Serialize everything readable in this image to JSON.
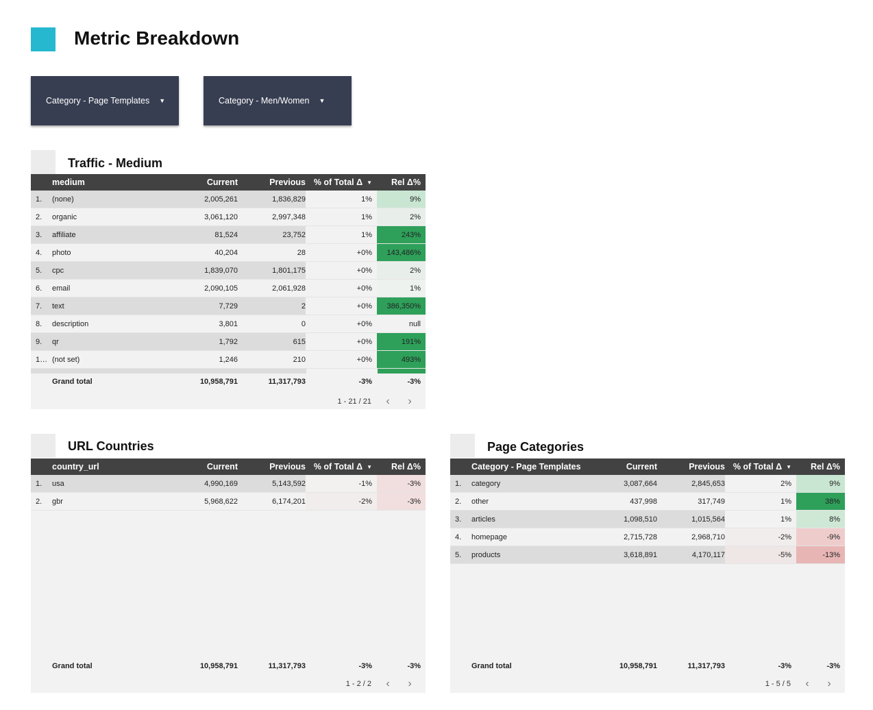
{
  "page": {
    "title": "Metric Breakdown",
    "accent": "#26b8cf"
  },
  "filters": [
    {
      "label": "Category - Page Templates"
    },
    {
      "label": "Category - Men/Women"
    }
  ],
  "colors": {
    "header_bg": "#424242",
    "filter_bg": "#383e52",
    "positive_strong": "#2ea05a",
    "positive_light": "#c9e6d2",
    "negative_light": "#f1dede"
  },
  "traffic": {
    "title": "Traffic - Medium",
    "columns": {
      "dim": "medium",
      "current": "Current",
      "previous": "Previous",
      "pct": "% of Total Δ",
      "rel": "Rel Δ%"
    },
    "rows": [
      {
        "idx": "1.",
        "dim": "(none)",
        "current": "2,005,261",
        "previous": "1,836,829",
        "pct": "1%",
        "rel": "9%",
        "pct_bg": "#f2f2f2",
        "rel_bg": "#c9e6d2"
      },
      {
        "idx": "2.",
        "dim": "organic",
        "current": "3,061,120",
        "previous": "2,997,348",
        "pct": "1%",
        "rel": "2%",
        "pct_bg": "#f2f2f2",
        "rel_bg": "#e8efea"
      },
      {
        "idx": "3.",
        "dim": "affiliate",
        "current": "81,524",
        "previous": "23,752",
        "pct": "1%",
        "rel": "243%",
        "pct_bg": "#f2f2f2",
        "rel_bg": "#2ea05a"
      },
      {
        "idx": "4.",
        "dim": "photo",
        "current": "40,204",
        "previous": "28",
        "pct": "+0%",
        "rel": "143,486%",
        "pct_bg": "#f2f2f2",
        "rel_bg": "#2ea05a"
      },
      {
        "idx": "5.",
        "dim": "cpc",
        "current": "1,839,070",
        "previous": "1,801,175",
        "pct": "+0%",
        "rel": "2%",
        "pct_bg": "#f2f2f2",
        "rel_bg": "#e8efea"
      },
      {
        "idx": "6.",
        "dim": "email",
        "current": "2,090,105",
        "previous": "2,061,928",
        "pct": "+0%",
        "rel": "1%",
        "pct_bg": "#f2f2f2",
        "rel_bg": "#eef2ef"
      },
      {
        "idx": "7.",
        "dim": "text",
        "current": "7,729",
        "previous": "2",
        "pct": "+0%",
        "rel": "386,350%",
        "pct_bg": "#f2f2f2",
        "rel_bg": "#2ea05a"
      },
      {
        "idx": "8.",
        "dim": "description",
        "current": "3,801",
        "previous": "0",
        "pct": "+0%",
        "rel": "null",
        "pct_bg": "#f2f2f2",
        "rel_bg": "#f2f2f2"
      },
      {
        "idx": "9.",
        "dim": "qr",
        "current": "1,792",
        "previous": "615",
        "pct": "+0%",
        "rel": "191%",
        "pct_bg": "#f2f2f2",
        "rel_bg": "#2ea05a"
      },
      {
        "idx": "1…",
        "dim": "(not set)",
        "current": "1,246",
        "previous": "210",
        "pct": "+0%",
        "rel": "493%",
        "pct_bg": "#f2f2f2",
        "rel_bg": "#2ea05a"
      }
    ],
    "total": {
      "label": "Grand total",
      "current": "10,958,791",
      "previous": "11,317,793",
      "pct": "-3%",
      "rel": "-3%"
    },
    "pager": "1 - 21 / 21"
  },
  "countries": {
    "title": "URL Countries",
    "columns": {
      "dim": "country_url",
      "current": "Current",
      "previous": "Previous",
      "pct": "% of Total Δ",
      "rel": "Rel Δ%"
    },
    "rows": [
      {
        "idx": "1.",
        "dim": "usa",
        "current": "4,990,169",
        "previous": "5,143,592",
        "pct": "-1%",
        "rel": "-3%",
        "pct_bg": "#f3f0f0",
        "rel_bg": "#f1dede"
      },
      {
        "idx": "2.",
        "dim": "gbr",
        "current": "5,968,622",
        "previous": "6,174,201",
        "pct": "-2%",
        "rel": "-3%",
        "pct_bg": "#f2eded",
        "rel_bg": "#f1dede"
      }
    ],
    "total": {
      "label": "Grand total",
      "current": "10,958,791",
      "previous": "11,317,793",
      "pct": "-3%",
      "rel": "-3%"
    },
    "pager": "1 - 2 / 2"
  },
  "categories": {
    "title": "Page Categories",
    "columns": {
      "dim": "Category - Page Templates",
      "current": "Current",
      "previous": "Previous",
      "pct": "% of Total Δ",
      "rel": "Rel Δ%"
    },
    "rows": [
      {
        "idx": "1.",
        "dim": "category",
        "current": "3,087,664",
        "previous": "2,845,653",
        "pct": "2%",
        "rel": "9%",
        "pct_bg": "#f2f2f2",
        "rel_bg": "#c9e6d2"
      },
      {
        "idx": "2.",
        "dim": "other",
        "current": "437,998",
        "previous": "317,749",
        "pct": "1%",
        "rel": "38%",
        "pct_bg": "#f2f2f2",
        "rel_bg": "#2ea05a"
      },
      {
        "idx": "3.",
        "dim": "articles",
        "current": "1,098,510",
        "previous": "1,015,564",
        "pct": "1%",
        "rel": "8%",
        "pct_bg": "#f2f2f2",
        "rel_bg": "#cfe8d6"
      },
      {
        "idx": "4.",
        "dim": "homepage",
        "current": "2,715,728",
        "previous": "2,968,710",
        "pct": "-2%",
        "rel": "-9%",
        "pct_bg": "#f2eded",
        "rel_bg": "#efcccc"
      },
      {
        "idx": "5.",
        "dim": "products",
        "current": "3,618,891",
        "previous": "4,170,117",
        "pct": "-5%",
        "rel": "-13%",
        "pct_bg": "#efe6e6",
        "rel_bg": "#e8b5b5"
      }
    ],
    "total": {
      "label": "Grand total",
      "current": "10,958,791",
      "previous": "11,317,793",
      "pct": "-3%",
      "rel": "-3%"
    },
    "pager": "1 - 5 / 5"
  }
}
